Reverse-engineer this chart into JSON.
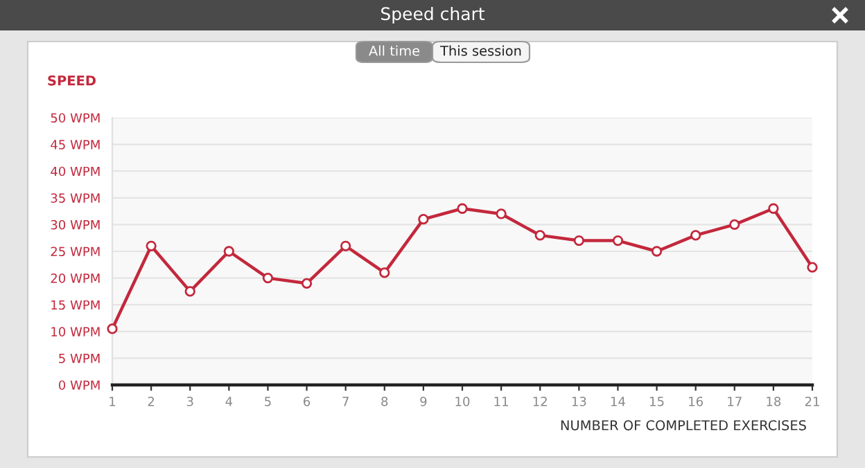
{
  "chart_data": {
    "type": "line",
    "title": "Speed chart",
    "ylabel": "SPEED",
    "xlabel": "NUMBER OF COMPLETED EXERCISES",
    "annotations": [
      "All time",
      "This session"
    ],
    "categories": [
      "1",
      "2",
      "3",
      "4",
      "5",
      "6",
      "7",
      "8",
      "9",
      "10",
      "11",
      "12",
      "13",
      "14",
      "15",
      "16",
      "17",
      "18",
      "21"
    ],
    "series": [
      {
        "color": "#c3283c",
        "values": [
          10.5,
          26,
          17.5,
          25,
          20,
          19,
          26,
          21,
          31,
          33,
          32,
          28,
          27,
          27,
          25,
          28,
          30,
          33,
          22
        ]
      }
    ],
    "ylim": [
      0,
      50
    ],
    "yticks": [
      {
        "value": 0,
        "label": "0 WPM"
      },
      {
        "value": 5,
        "label": "5 WPM"
      },
      {
        "value": 10,
        "label": "10 WPM"
      },
      {
        "value": 15,
        "label": "15 WPM"
      },
      {
        "value": 20,
        "label": "20 WPM"
      },
      {
        "value": 25,
        "label": "25 WPM"
      },
      {
        "value": 30,
        "label": "30 WPM"
      },
      {
        "value": 35,
        "label": "35 WPM"
      },
      {
        "value": 40,
        "label": "40 WPM"
      },
      {
        "value": 45,
        "label": "45 WPM"
      },
      {
        "value": 50,
        "label": "50 WPM"
      }
    ],
    "grid": "y",
    "marker": "circle",
    "line_style": "solid",
    "legend": false
  }
}
